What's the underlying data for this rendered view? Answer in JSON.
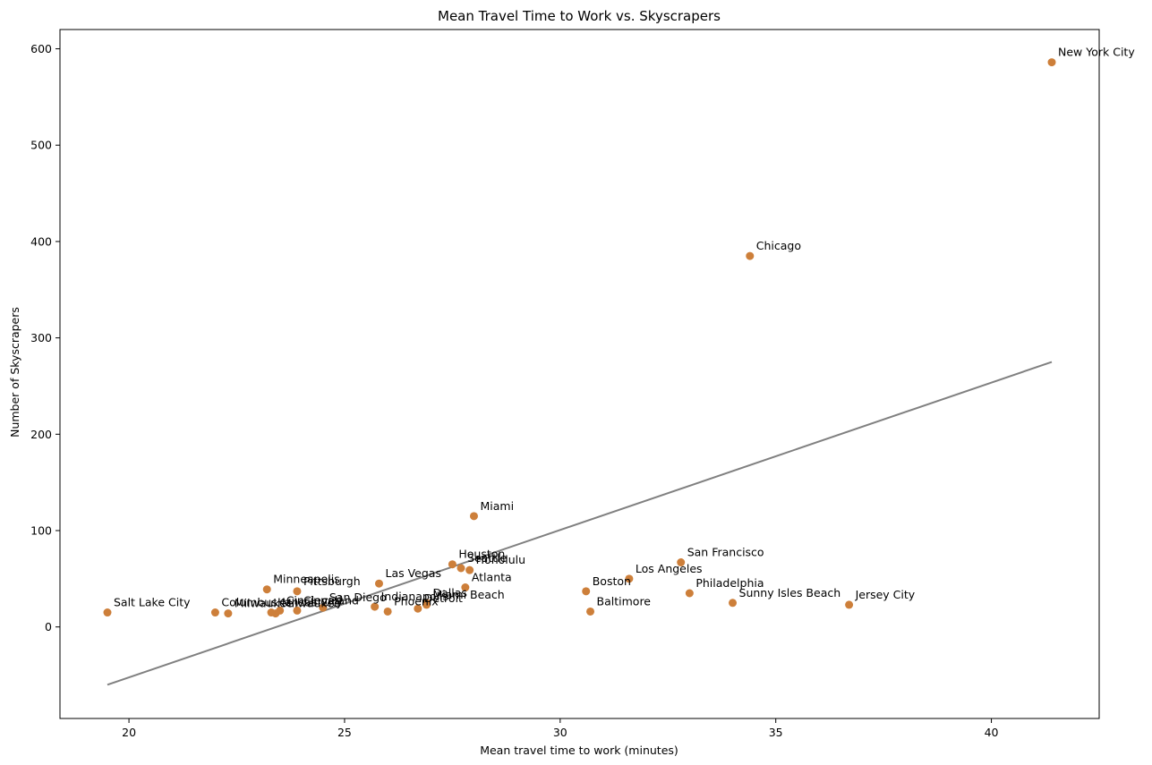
{
  "chart_data": {
    "type": "scatter",
    "title": "Mean Travel Time to Work vs. Skyscrapers",
    "xlabel": "Mean travel time to work (minutes)",
    "ylabel": "Number of Skyscrapers",
    "xlim": [
      18.4,
      42.5
    ],
    "ylim": [
      -95,
      620
    ],
    "xticks": [
      20,
      25,
      30,
      35,
      40
    ],
    "yticks": [
      0,
      100,
      200,
      300,
      400,
      500,
      600
    ],
    "grid": false,
    "point_color": "#cd7f3a",
    "line_color": "#808080",
    "points": [
      {
        "label": "New York City",
        "x": 41.4,
        "y": 586
      },
      {
        "label": "Chicago",
        "x": 34.4,
        "y": 385
      },
      {
        "label": "Miami",
        "x": 28.0,
        "y": 115
      },
      {
        "label": "San Francisco",
        "x": 32.8,
        "y": 67
      },
      {
        "label": "Houston",
        "x": 27.5,
        "y": 65
      },
      {
        "label": "Seattle",
        "x": 27.7,
        "y": 61
      },
      {
        "label": "Honolulu",
        "x": 27.9,
        "y": 59
      },
      {
        "label": "Los Angeles",
        "x": 31.6,
        "y": 50
      },
      {
        "label": "Las Vegas",
        "x": 25.8,
        "y": 45
      },
      {
        "label": "Atlanta",
        "x": 27.8,
        "y": 41
      },
      {
        "label": "Minneapolis",
        "x": 23.2,
        "y": 39
      },
      {
        "label": "Boston",
        "x": 30.6,
        "y": 37
      },
      {
        "label": "Pittsburgh",
        "x": 23.9,
        "y": 37
      },
      {
        "label": "Philadelphia",
        "x": 33.0,
        "y": 35
      },
      {
        "label": "Sunny Isles Beach",
        "x": 34.0,
        "y": 25
      },
      {
        "label": "Jersey City",
        "x": 36.7,
        "y": 23
      },
      {
        "label": "Miami Beach",
        "x": 26.9,
        "y": 23
      },
      {
        "label": "Dallas",
        "x": 26.9,
        "y": 25
      },
      {
        "label": "San Diego",
        "x": 24.5,
        "y": 20
      },
      {
        "label": "Indianapolis",
        "x": 25.7,
        "y": 21
      },
      {
        "label": "Detroit",
        "x": 26.7,
        "y": 19
      },
      {
        "label": "Phoenix",
        "x": 26.0,
        "y": 16
      },
      {
        "label": "Baltimore",
        "x": 30.7,
        "y": 16
      },
      {
        "label": "Cleveland",
        "x": 23.9,
        "y": 17
      },
      {
        "label": "Cincinnati",
        "x": 23.5,
        "y": 17
      },
      {
        "label": "Milwaukee",
        "x": 23.4,
        "y": 14
      },
      {
        "label": "Kansas City",
        "x": 23.3,
        "y": 15
      },
      {
        "label": "Columbus",
        "x": 22.0,
        "y": 15
      },
      {
        "label": "Milwaukee",
        "x": 22.3,
        "y": 14
      },
      {
        "label": "Salt Lake City",
        "x": 19.5,
        "y": 15
      }
    ],
    "trendline": {
      "x": [
        19.5,
        41.4
      ],
      "y": [
        -60,
        275
      ]
    }
  }
}
